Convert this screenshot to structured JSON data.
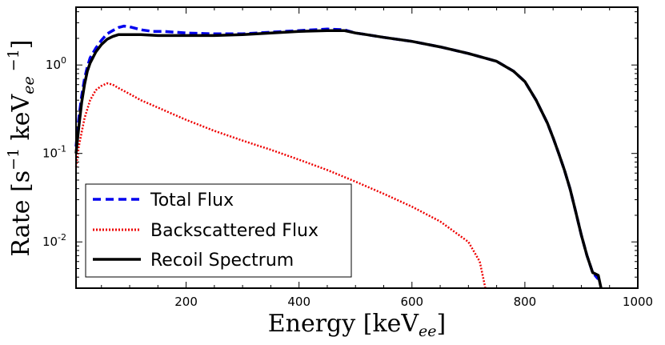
{
  "chart_data": {
    "type": "line",
    "xlabel": "Energy [keV",
    "xlabel_sub": "ee",
    "xlabel_close": "]",
    "ylabel_parts": [
      "Rate [s",
      "−1",
      " keV",
      "ee",
      "  −1",
      "]"
    ],
    "x_scale": "linear",
    "y_scale": "log",
    "xlim": [
      5,
      1000
    ],
    "ylim": [
      0.003,
      4.5
    ],
    "x_ticks": [
      {
        "value": 200,
        "label": "200"
      },
      {
        "value": 400,
        "label": "400"
      },
      {
        "value": 600,
        "label": "600"
      },
      {
        "value": 800,
        "label": "800"
      },
      {
        "value": 1000,
        "label": "1000"
      }
    ],
    "y_ticks": [
      {
        "value": 0.01,
        "base": "10",
        "exp": "-2"
      },
      {
        "value": 0.1,
        "base": "10",
        "exp": "-1"
      },
      {
        "value": 1,
        "base": "10",
        "exp": "0"
      }
    ],
    "legend_position": "lower-left",
    "series": [
      {
        "name": "Total Flux",
        "color": "#0000ee",
        "style": "dashed",
        "x": [
          5,
          10,
          15,
          20,
          25,
          30,
          40,
          50,
          60,
          70,
          80,
          90,
          100,
          110,
          120,
          140,
          160,
          180,
          200,
          250,
          300,
          350,
          400,
          450,
          480,
          500,
          520,
          550,
          600,
          650,
          700,
          750,
          780,
          800,
          820,
          840,
          850,
          860,
          870,
          880,
          890,
          900,
          910,
          920,
          930
        ],
        "y": [
          0.12,
          0.25,
          0.45,
          0.7,
          0.95,
          1.2,
          1.55,
          1.9,
          2.25,
          2.45,
          2.65,
          2.75,
          2.7,
          2.6,
          2.5,
          2.4,
          2.4,
          2.35,
          2.3,
          2.25,
          2.25,
          2.35,
          2.45,
          2.55,
          2.5,
          2.3,
          2.2,
          2.05,
          1.85,
          1.6,
          1.35,
          1.1,
          0.85,
          0.65,
          0.4,
          0.22,
          0.15,
          0.1,
          0.065,
          0.04,
          0.022,
          0.012,
          0.007,
          0.0045,
          0.0038
        ]
      },
      {
        "name": "Backscattered Flux",
        "color": "#ee0000",
        "style": "dotted",
        "x": [
          5,
          10,
          20,
          30,
          40,
          50,
          60,
          70,
          80,
          100,
          120,
          150,
          200,
          250,
          300,
          350,
          400,
          450,
          500,
          550,
          600,
          650,
          700,
          720,
          730
        ],
        "y": [
          0.07,
          0.12,
          0.25,
          0.4,
          0.52,
          0.58,
          0.62,
          0.6,
          0.55,
          0.47,
          0.4,
          0.33,
          0.24,
          0.18,
          0.14,
          0.11,
          0.085,
          0.065,
          0.048,
          0.035,
          0.025,
          0.017,
          0.01,
          0.006,
          0.003
        ]
      },
      {
        "name": "Recoil Spectrum",
        "color": "#000000",
        "style": "solid",
        "x": [
          5,
          10,
          15,
          20,
          25,
          30,
          40,
          50,
          60,
          70,
          80,
          100,
          120,
          150,
          200,
          250,
          300,
          350,
          400,
          450,
          480,
          500,
          520,
          550,
          600,
          650,
          700,
          750,
          780,
          800,
          820,
          840,
          850,
          860,
          870,
          880,
          890,
          900,
          910,
          920,
          930,
          935
        ],
        "y": [
          0.1,
          0.2,
          0.38,
          0.6,
          0.85,
          1.05,
          1.4,
          1.7,
          1.95,
          2.1,
          2.2,
          2.2,
          2.2,
          2.15,
          2.15,
          2.15,
          2.2,
          2.3,
          2.4,
          2.45,
          2.45,
          2.3,
          2.2,
          2.05,
          1.85,
          1.6,
          1.35,
          1.1,
          0.85,
          0.65,
          0.4,
          0.22,
          0.15,
          0.1,
          0.065,
          0.04,
          0.022,
          0.012,
          0.007,
          0.0045,
          0.0042,
          0.003
        ]
      }
    ]
  }
}
